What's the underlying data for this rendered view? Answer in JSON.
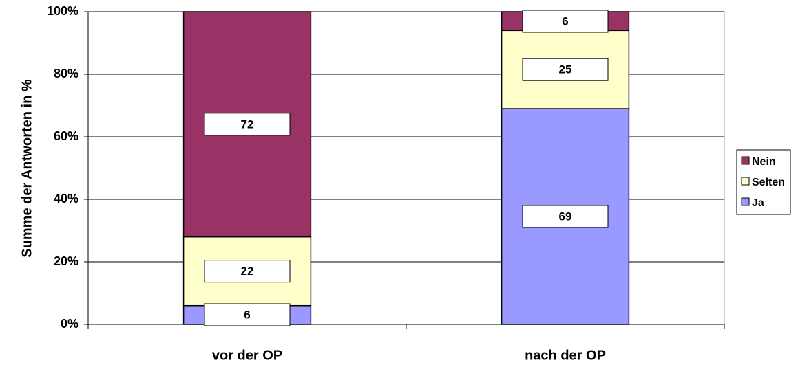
{
  "chart_data": {
    "type": "stacked_bar",
    "y_label": "Summe der Antworten in %",
    "categories": [
      "vor der OP",
      "nach der OP"
    ],
    "series": [
      {
        "name": "Ja",
        "color": "#9999ff",
        "values": [
          6,
          69
        ]
      },
      {
        "name": "Selten",
        "color": "#ffffcc",
        "values": [
          22,
          25
        ]
      },
      {
        "name": "Nein",
        "color": "#993366",
        "values": [
          72,
          6
        ]
      }
    ],
    "ylim": [
      0,
      100
    ],
    "yticks": [
      {
        "value": 0,
        "label": "0%"
      },
      {
        "value": 20,
        "label": "20%"
      },
      {
        "value": 40,
        "label": "40%"
      },
      {
        "value": 60,
        "label": "60%"
      },
      {
        "value": 80,
        "label": "80%"
      },
      {
        "value": 100,
        "label": "100%"
      }
    ],
    "grid": true,
    "legend": "right"
  }
}
